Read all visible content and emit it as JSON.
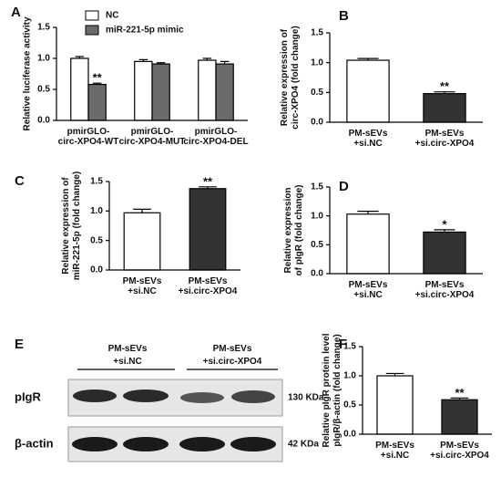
{
  "chart_data": [
    {
      "type": "bar",
      "panel": "A",
      "y_label": "Relative luciferase activity",
      "categories": [
        "pmirGLO-\ncirc-XPO4-WT",
        "pmirGLO-\ncirc-XPO4-MUT",
        "pmirGLO-\ncirc-XPO4-DEL"
      ],
      "series": [
        {
          "name": "NC",
          "color": "#ffffff",
          "values": [
            1.0,
            0.95,
            0.97
          ],
          "errors": [
            0.03,
            0.03,
            0.03
          ],
          "significance": [
            null,
            null,
            null
          ]
        },
        {
          "name": "miR-221-5p mimic",
          "color": "#6b6b6b",
          "values": [
            0.58,
            0.91,
            0.91
          ],
          "errors": [
            0.02,
            0.02,
            0.04
          ],
          "significance": [
            "**",
            null,
            null
          ]
        }
      ],
      "ylim": [
        0,
        1.5
      ],
      "yticks": [
        {
          "value": 0,
          "label": "0.0"
        },
        0.5,
        {
          "value": 1,
          "label": "1.0"
        },
        1.5
      ]
    },
    {
      "type": "bar",
      "panel": "B",
      "y_label": "Relative expression of\ncirc-XPO4 (fold change)",
      "categories": [
        "PM-sEVs\n+si.NC",
        "PM-sEVs\n+si.circ-XPO4"
      ],
      "values": [
        1.04,
        0.48
      ],
      "errors": [
        0.03,
        0.03
      ],
      "colors": [
        "#ffffff",
        "#333333"
      ],
      "significance": [
        null,
        "**"
      ],
      "ylim": [
        0,
        1.5
      ],
      "yticks": [
        {
          "value": 0,
          "label": "0.0"
        },
        0.5,
        {
          "value": 1,
          "label": "1.0"
        },
        1.5
      ]
    },
    {
      "type": "bar",
      "panel": "C",
      "y_label": "Relative expression of\nmiR-221-5p (fold change)",
      "categories": [
        "PM-sEVs\n+si.NC",
        "PM-sEVs\n+si.circ-XPO4"
      ],
      "values": [
        0.97,
        1.38
      ],
      "errors": [
        0.06,
        0.03
      ],
      "colors": [
        "#ffffff",
        "#333333"
      ],
      "significance": [
        null,
        "**"
      ],
      "ylim": [
        0,
        1.5
      ],
      "yticks": [
        {
          "value": 0,
          "label": "0.0"
        },
        0.5,
        {
          "value": 1,
          "label": "1.0"
        },
        1.5
      ]
    },
    {
      "type": "bar",
      "panel": "D",
      "y_label": "Relative expression\nof pIgR (fold change)",
      "categories": [
        "PM-sEVs\n+si.NC",
        "PM-sEVs\n+si.circ-XPO4"
      ],
      "values": [
        1.03,
        0.72
      ],
      "errors": [
        0.05,
        0.04
      ],
      "colors": [
        "#ffffff",
        "#333333"
      ],
      "significance": [
        null,
        "*"
      ],
      "ylim": [
        0,
        1.5
      ],
      "yticks": [
        {
          "value": 0,
          "label": "0.0"
        },
        0.5,
        {
          "value": 1,
          "label": "1.0"
        },
        1.5
      ]
    },
    {
      "type": "bar",
      "panel": "F",
      "y_label": "Relative pIgR protein level\npIgR/β-actin (fold change)",
      "categories": [
        "PM-sEVs\n+si.NC",
        "PM-sEVs\n+si.circ-XPO4"
      ],
      "values": [
        1.0,
        0.59
      ],
      "errors": [
        0.04,
        0.03
      ],
      "colors": [
        "#ffffff",
        "#333333"
      ],
      "significance": [
        null,
        "**"
      ],
      "ylim": [
        0,
        1.5
      ],
      "yticks": [
        {
          "value": 0,
          "label": "0.0"
        },
        0.5,
        {
          "value": 1,
          "label": "1.0"
        },
        1.5
      ]
    }
  ],
  "blot": {
    "panel": "E",
    "groups": [
      "PM-sEVs\n+si.NC",
      "PM-sEVs\n+si.circ-XPO4"
    ],
    "rows": [
      {
        "name": "pIgR",
        "size": "130 KDa"
      },
      {
        "name": "β-actin",
        "size": "42 KDa"
      }
    ]
  }
}
